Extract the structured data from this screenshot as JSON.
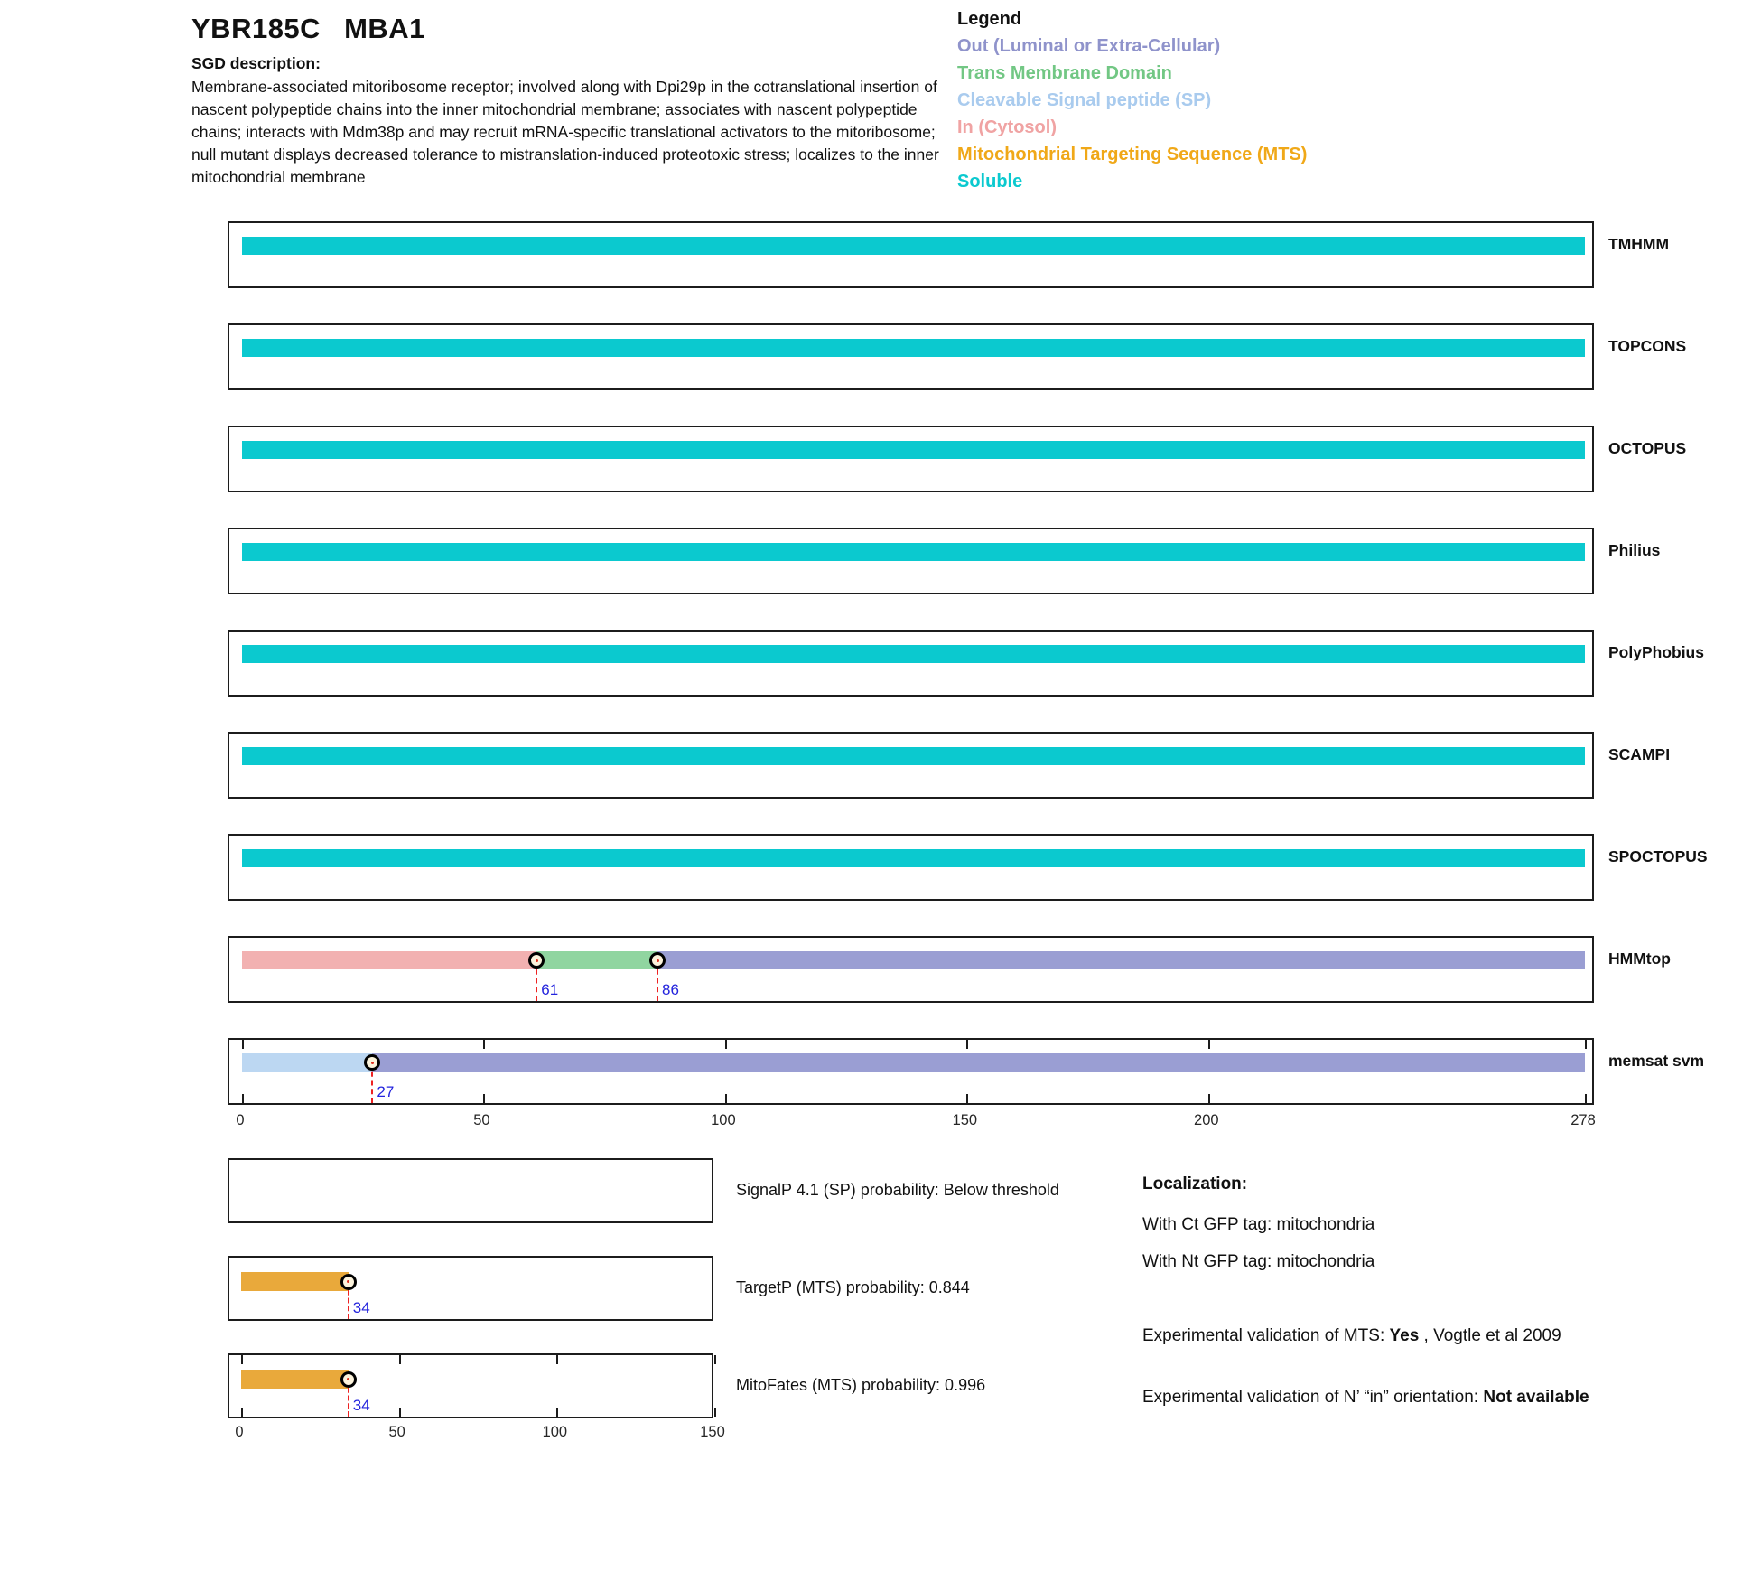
{
  "header": {
    "orf": "YBR185C",
    "gene": "MBA1",
    "sgd_label": "SGD description:",
    "description_lines": [
      "Membrane-associated mitoribosome receptor; involved along with Dpi29p in the cotranslational insertion of",
      "nascent polypeptide chains into the inner mitochondrial membrane; associates with nascent polypeptide",
      "chains; interacts with Mdm38p and may recruit mRNA-specific translational activators to the mitoribosome;",
      "null mutant displays decreased tolerance to mistranslation-induced proteotoxic stress; localizes to the inner",
      "mitochondrial membrane"
    ]
  },
  "legend": {
    "title": "Legend",
    "items": [
      {
        "label": "Out (Luminal or Extra-Cellular)",
        "color": "#8f93cb",
        "state": "out"
      },
      {
        "label": "Trans Membrane Domain",
        "color": "#72c784",
        "state": "tm"
      },
      {
        "label": "Cleavable Signal peptide (SP)",
        "color": "#a9cbee",
        "state": "sp"
      },
      {
        "label": "In (Cytosol)",
        "color": "#f0a3a3",
        "state": "in"
      },
      {
        "label": "Mitochondrial Targeting Sequence (MTS)",
        "color": "#f0a818",
        "state": "mts"
      },
      {
        "label": "Soluble",
        "color": "#0bc9cf",
        "state": "soluble"
      }
    ]
  },
  "colors": {
    "soluble": "#0bc9cf",
    "in": "#f2b1b1",
    "tm": "#90d5a0",
    "out": "#9a9ed3",
    "sp": "#bcd7f2",
    "mts": "#e9a93b",
    "marker_fill": "#fcf3dc",
    "marker_line_red": "#ee2222",
    "number_blue": "#2323dd"
  },
  "chart_data": {
    "type": "interval-tracks",
    "x_unit": "residue position",
    "main_axis": {
      "min": 0,
      "max": 278,
      "ticks": [
        0,
        50,
        100,
        150,
        200,
        278
      ]
    },
    "tracks": [
      {
        "label": "TMHMM",
        "segments": [
          {
            "state": "soluble",
            "start": 0,
            "end": 278
          }
        ],
        "markers": [],
        "axis_ticks": false
      },
      {
        "label": "TOPCONS",
        "segments": [
          {
            "state": "soluble",
            "start": 0,
            "end": 278
          }
        ],
        "markers": [],
        "axis_ticks": false
      },
      {
        "label": "OCTOPUS",
        "segments": [
          {
            "state": "soluble",
            "start": 0,
            "end": 278
          }
        ],
        "markers": [],
        "axis_ticks": false
      },
      {
        "label": "Philius",
        "segments": [
          {
            "state": "soluble",
            "start": 0,
            "end": 278
          }
        ],
        "markers": [],
        "axis_ticks": false
      },
      {
        "label": "PolyPhobius",
        "segments": [
          {
            "state": "soluble",
            "start": 0,
            "end": 278
          }
        ],
        "markers": [],
        "axis_ticks": false
      },
      {
        "label": "SCAMPI",
        "segments": [
          {
            "state": "soluble",
            "start": 0,
            "end": 278
          }
        ],
        "markers": [],
        "axis_ticks": false
      },
      {
        "label": "SPOCTOPUS",
        "segments": [
          {
            "state": "soluble",
            "start": 0,
            "end": 278
          }
        ],
        "markers": [],
        "axis_ticks": false
      },
      {
        "label": "HMMtop",
        "segments": [
          {
            "state": "in",
            "start": 0,
            "end": 61
          },
          {
            "state": "tm",
            "start": 61,
            "end": 86
          },
          {
            "state": "out",
            "start": 86,
            "end": 278
          }
        ],
        "markers": [
          61,
          86
        ],
        "axis_ticks": false
      },
      {
        "label": "memsat svm",
        "segments": [
          {
            "state": "sp",
            "start": 0,
            "end": 27
          },
          {
            "state": "out",
            "start": 27,
            "end": 278
          }
        ],
        "markers": [
          27
        ],
        "axis_ticks": true
      }
    ],
    "probability_axis": {
      "min": 0,
      "max": 150,
      "ticks": [
        0,
        50,
        100,
        150
      ]
    },
    "probability_plots": [
      {
        "label": "SignalP 4.1 (SP) probability: Below threshold",
        "segments": [],
        "markers": [],
        "axis_ticks": false
      },
      {
        "label": "TargetP (MTS) probability: 0.844",
        "segments": [
          {
            "state": "mts",
            "start": 0,
            "end": 34
          }
        ],
        "markers": [
          34
        ],
        "axis_ticks": false
      },
      {
        "label": "MitoFates (MTS) probability: 0.996",
        "segments": [
          {
            "state": "mts",
            "start": 0,
            "end": 34
          }
        ],
        "markers": [
          34
        ],
        "axis_ticks": true
      }
    ]
  },
  "localization": {
    "title": "Localization:",
    "lines": [
      "With Ct GFP tag: mitochondria",
      "With Nt GFP tag: mitochondria"
    ]
  },
  "experimental": {
    "mts_pre": "Experimental validation of MTS: ",
    "mts_bold": "Yes",
    "mts_post": " , Vogtle et al 2009",
    "orientation_pre": "Experimental validation of N’ “in” orientation: ",
    "orientation_bold": "Not available"
  }
}
